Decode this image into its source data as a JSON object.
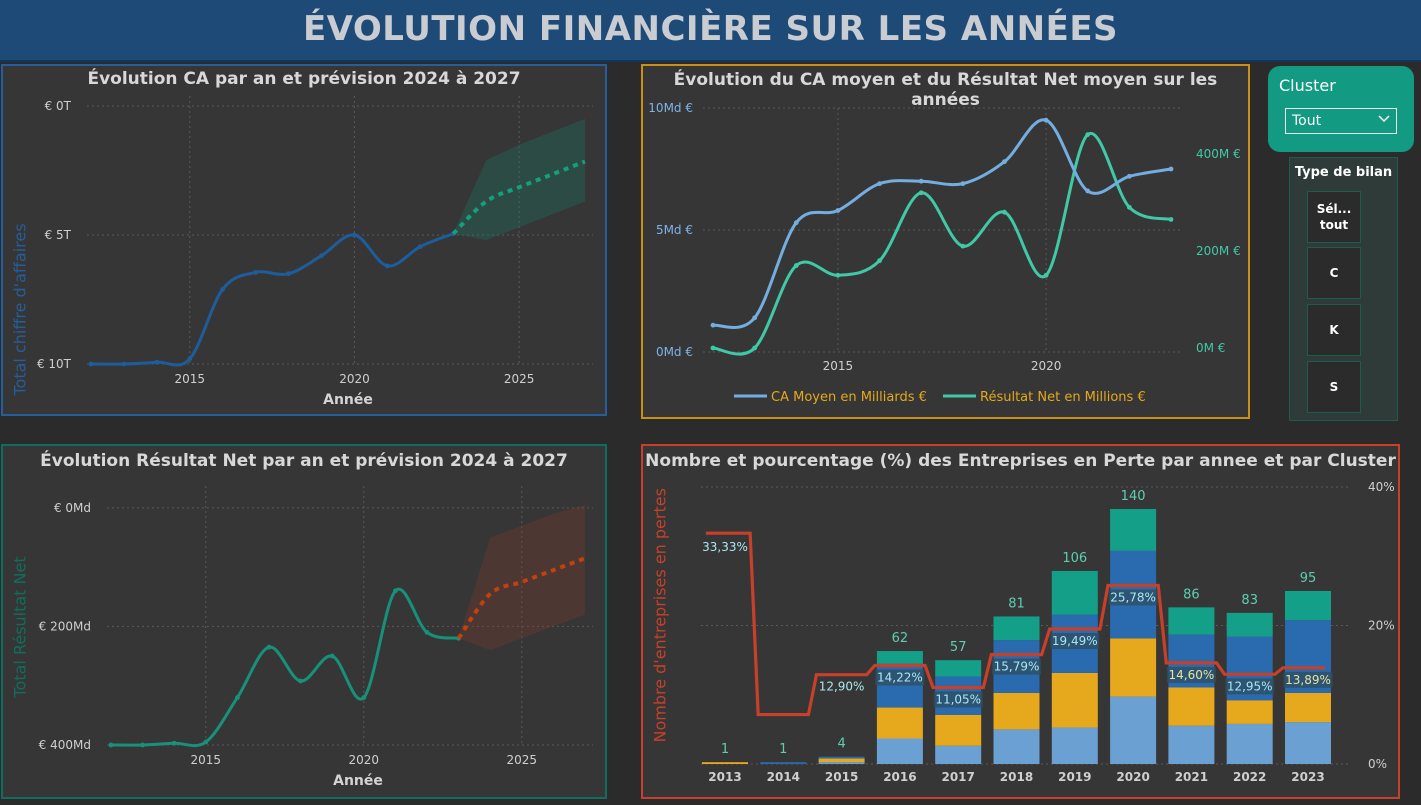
{
  "page_title": "ÉVOLUTION FINANCIÈRE SUR LES ANNÉES",
  "colors": {
    "header_bg": "#1e4a78",
    "blue_line": "#1e5d9c",
    "teal_line": "#18917a",
    "orange_forecast": "#c2410c",
    "ca_moyen_line": "#74aee0",
    "rn_moyen_line": "#40c9a6",
    "bar_light_blue": "#6aa1d2",
    "bar_yellow": "#e6a81c",
    "bar_blue": "#2a6aae",
    "bar_teal": "#14a088",
    "loss_line": "#c6402a"
  },
  "slicers": {
    "cluster": {
      "title": "Cluster",
      "selected": "Tout",
      "icon": "chevron-down-icon"
    },
    "type_bilan": {
      "title": "Type de bilan",
      "options": [
        "Sél... tout",
        "C",
        "K",
        "S"
      ]
    }
  },
  "charts": [
    {
      "id": "ca_forecast",
      "title": "Évolution CA par an et prévision 2024 à 2027",
      "ylabel": "Total chiffre d'affaires",
      "xlabel": "Année",
      "y_ticks": [
        "€ 10T",
        "€ 5T",
        "€ 0T"
      ],
      "x_ticks": [
        "2015",
        "2020",
        "2025"
      ]
    },
    {
      "id": "moyennes",
      "title": "Évolution du CA moyen et du Résultat Net moyen sur les années",
      "y_ticks_left": [
        "10Md €",
        "5Md €",
        "0Md €"
      ],
      "y_ticks_right": [
        "400M €",
        "200M €",
        "0M €"
      ],
      "x_ticks": [
        "2015",
        "2020"
      ],
      "legend": [
        "CA Moyen en Milliards €",
        "Résultat Net en Millions €"
      ]
    },
    {
      "id": "rn_forecast",
      "title": "Évolution Résultat Net par an et prévision 2024 à 2027",
      "ylabel": "Total Résultat Net",
      "xlabel": "Année",
      "y_ticks": [
        "€ 400Md",
        "€ 200Md",
        "€ 0Md"
      ],
      "x_ticks": [
        "2015",
        "2020",
        "2025"
      ]
    },
    {
      "id": "pertes",
      "title": "Nombre et pourcentage (%) des Entreprises en Perte par annee et par Cluster",
      "ylabel": "Nombre d'entreprises en pertes",
      "y_ticks_right": [
        "40%",
        "20%",
        "0%"
      ]
    }
  ],
  "chart_data": [
    {
      "type": "line",
      "title": "Évolution CA par an et prévision 2024 à 2027",
      "xlabel": "Année",
      "ylabel": "Total chiffre d'affaires",
      "unit": "T €",
      "ylim": [
        0,
        10
      ],
      "xlim": [
        2012,
        2027
      ],
      "series": [
        {
          "x": [
            2012,
            2013,
            2014,
            2015,
            2016,
            2017,
            2018,
            2019,
            2020,
            2021,
            2022,
            2023
          ],
          "values": [
            0.0,
            0.0,
            0.07,
            0.2,
            2.9,
            3.55,
            3.5,
            4.2,
            5.0,
            3.8,
            4.55,
            5.05
          ]
        },
        {
          "x": [
            2023,
            2024,
            2025,
            2026,
            2027
          ],
          "values": [
            5.05,
            6.3,
            6.85,
            7.35,
            7.85
          ],
          "forecast": true,
          "lower": [
            5.05,
            4.8,
            5.3,
            5.8,
            6.3
          ],
          "upper": [
            5.05,
            7.9,
            8.5,
            9.0,
            9.5
          ]
        }
      ],
      "grid": true
    },
    {
      "type": "line",
      "title": "Évolution du CA moyen et du Résultat Net moyen sur les années",
      "xlim": [
        2012,
        2023
      ],
      "ylim_left": [
        0,
        10
      ],
      "ylim_right": [
        0,
        450
      ],
      "series": [
        {
          "name": "CA Moyen en Milliards €",
          "axis": "left",
          "x": [
            2012,
            2013,
            2014,
            2015,
            2016,
            2017,
            2018,
            2019,
            2020,
            2021,
            2022,
            2023
          ],
          "values": [
            1.1,
            1.4,
            5.3,
            5.8,
            6.9,
            7.0,
            6.9,
            7.8,
            9.5,
            6.6,
            7.2,
            7.5
          ]
        },
        {
          "name": "Résultat Net en Millions €",
          "axis": "right",
          "x": [
            2012,
            2013,
            2014,
            2015,
            2016,
            2017,
            2018,
            2019,
            2020,
            2021,
            2022,
            2023
          ],
          "values": [
            0,
            0,
            170,
            150,
            180,
            320,
            210,
            280,
            150,
            440,
            290,
            265
          ]
        }
      ],
      "legend": "bottom",
      "grid": true
    },
    {
      "type": "line",
      "title": "Évolution Résultat Net par an et prévision 2024 à 2027",
      "xlabel": "Année",
      "ylabel": "Total Résultat Net",
      "unit": "Md €",
      "ylim": [
        0,
        420
      ],
      "xlim": [
        2012,
        2027
      ],
      "series": [
        {
          "x": [
            2012,
            2013,
            2014,
            2015,
            2016,
            2017,
            2018,
            2019,
            2020,
            2021,
            2022,
            2023
          ],
          "values": [
            0,
            0,
            3,
            5,
            80,
            165,
            108,
            150,
            80,
            260,
            190,
            180
          ]
        },
        {
          "x": [
            2023,
            2024,
            2025,
            2026,
            2027
          ],
          "values": [
            180,
            255,
            275,
            295,
            315
          ],
          "forecast": true,
          "lower": [
            180,
            160,
            180,
            200,
            220
          ],
          "upper": [
            180,
            350,
            370,
            390,
            405
          ]
        }
      ],
      "grid": true
    },
    {
      "type": "bar",
      "title": "Nombre et pourcentage (%) des Entreprises en Perte par annee et par Cluster",
      "ylabel": "Nombre d'entreprises en pertes",
      "categories": [
        "2013",
        "2014",
        "2015",
        "2016",
        "2017",
        "2018",
        "2019",
        "2020",
        "2021",
        "2022",
        "2023"
      ],
      "totals": [
        1,
        1,
        4,
        62,
        57,
        81,
        106,
        140,
        86,
        83,
        95
      ],
      "stacks": [
        [
          0,
          0,
          1,
          14,
          10,
          19,
          20,
          37,
          21,
          22,
          23
        ],
        [
          1,
          0,
          2,
          17,
          17,
          20,
          30,
          32,
          21,
          13,
          16
        ],
        [
          0,
          1,
          1,
          24,
          21,
          29,
          32,
          48,
          29,
          35,
          40
        ],
        [
          0,
          0,
          0,
          7,
          9,
          13,
          24,
          23,
          15,
          13,
          16
        ]
      ],
      "pct_line": [
        33.33,
        7.14,
        12.9,
        14.22,
        11.05,
        15.79,
        19.49,
        25.78,
        14.6,
        12.95,
        13.89
      ],
      "pct_labels": [
        "33,33%",
        "",
        "12,90%",
        "14,22%",
        "11,05%",
        "15,79%",
        "19,49%",
        "25,78%",
        "14,60%",
        "12,95%",
        "13,89%"
      ],
      "ylim": [
        0,
        140
      ],
      "ylim_right": [
        0,
        40
      ]
    }
  ]
}
